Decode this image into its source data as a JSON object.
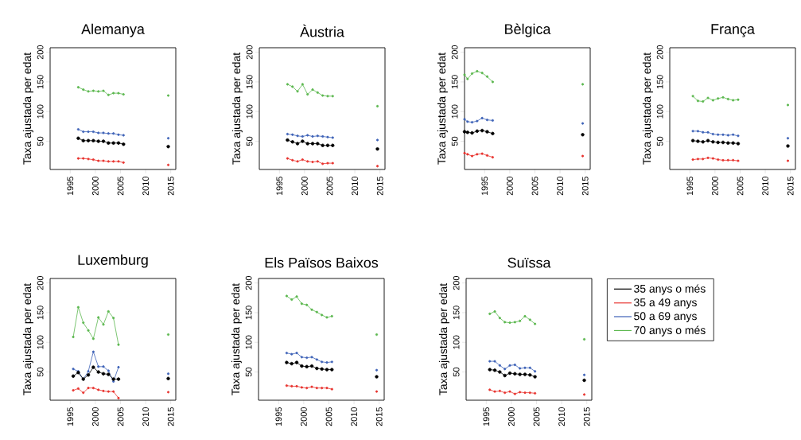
{
  "chart_data": [
    {
      "type": "line",
      "title": "Alemanya",
      "ylabel": "Taxa ajustada per edat",
      "xlim": [
        1991,
        2016
      ],
      "ylim": [
        2.4,
        207.6
      ],
      "xticks": [
        1995,
        2000,
        2005,
        2010,
        2015
      ],
      "yticks": [
        50,
        100,
        150,
        200
      ],
      "marker": "circle",
      "legend": false,
      "grid": false,
      "x": [
        1996.6,
        1997.6,
        1998.6,
        1999.6,
        2000.6,
        2001.6,
        2002.6,
        2003.6,
        2004.6,
        2005.6,
        2010,
        2014.5
      ],
      "series": [
        {
          "color": "#000000",
          "values": [
            55,
            51,
            51,
            51,
            50,
            50,
            47,
            47,
            47,
            45,
            null,
            41
          ]
        },
        {
          "color": "#e8332e",
          "values": [
            21,
            21,
            20,
            19,
            17,
            17,
            16,
            16,
            16,
            14,
            null,
            10
          ]
        },
        {
          "color": "#3f63b8",
          "values": [
            70,
            66,
            66,
            66,
            64,
            64,
            63,
            63,
            61,
            60,
            null,
            55
          ]
        },
        {
          "color": "#5cb84f",
          "values": [
            141,
            137,
            134,
            135,
            134,
            135,
            128,
            131,
            131,
            129,
            null,
            127
          ]
        }
      ]
    },
    {
      "type": "line",
      "title": "Àustria",
      "ylabel": "Taxa ajustada per edat",
      "xlim": [
        1991,
        2016
      ],
      "ylim": [
        2.4,
        207.6
      ],
      "xticks": [
        1995,
        2000,
        2005,
        2010,
        2015
      ],
      "yticks": [
        50,
        100,
        150,
        200
      ],
      "marker": "circle",
      "legend": false,
      "grid": false,
      "x": [
        1996.6,
        1997.6,
        1998.6,
        1999.6,
        2000.6,
        2001.6,
        2002.6,
        2003.6,
        2004.6,
        2005.6,
        2010,
        2014.5
      ],
      "series": [
        {
          "color": "#000000",
          "values": [
            52,
            49,
            46,
            50,
            46,
            46,
            46,
            43,
            43,
            43,
            null,
            37
          ]
        },
        {
          "color": "#e8332e",
          "values": [
            21,
            18,
            16,
            19,
            16,
            15,
            16,
            12,
            13,
            13,
            null,
            8
          ]
        },
        {
          "color": "#3f63b8",
          "values": [
            62,
            61,
            59,
            58,
            60,
            58,
            59,
            58,
            57,
            56,
            null,
            52
          ]
        },
        {
          "color": "#5cb84f",
          "values": [
            146,
            142,
            134,
            146,
            129,
            137,
            132,
            127,
            126,
            126,
            null,
            109
          ]
        }
      ]
    },
    {
      "type": "line",
      "title": "Bèlgica",
      "ylabel": "Taxa ajustada per edat",
      "xlim": [
        1991,
        2016
      ],
      "ylim": [
        2.4,
        207.6
      ],
      "xticks": [
        1995,
        2000,
        2005,
        2010,
        2015
      ],
      "yticks": [
        50,
        100,
        150,
        200
      ],
      "marker": "circle",
      "legend": false,
      "grid": false,
      "x": [
        1991,
        1991.6,
        1992.5,
        1993.5,
        1994.5,
        1995.5,
        1996.6,
        2005,
        2014.5
      ],
      "series": [
        {
          "color": "#000000",
          "values": [
            66,
            65,
            64,
            67,
            68,
            66,
            63,
            null,
            61
          ]
        },
        {
          "color": "#e8332e",
          "values": [
            30,
            28,
            25,
            28,
            29,
            26,
            23,
            null,
            25
          ]
        },
        {
          "color": "#3f63b8",
          "values": [
            87,
            83,
            82,
            84,
            89,
            86,
            85,
            null,
            80
          ]
        },
        {
          "color": "#5cb84f",
          "values": [
            162,
            155,
            164,
            168,
            165,
            159,
            150,
            null,
            146
          ]
        }
      ]
    },
    {
      "type": "line",
      "title": "França",
      "ylabel": "Taxa ajustada per edat",
      "xlim": [
        1991,
        2016
      ],
      "ylim": [
        2.4,
        207.6
      ],
      "xticks": [
        1995,
        2000,
        2005,
        2010,
        2015
      ],
      "yticks": [
        50,
        100,
        150,
        200
      ],
      "marker": "circle",
      "legend": false,
      "grid": false,
      "x": [
        1995.6,
        1996.6,
        1997.6,
        1998.6,
        1999.6,
        2000.6,
        2001.6,
        2002.6,
        2003.6,
        2004.6,
        2010,
        2014.5
      ],
      "series": [
        {
          "color": "#000000",
          "values": [
            51,
            50,
            49,
            51,
            49,
            48,
            48,
            47,
            47,
            46,
            null,
            42
          ]
        },
        {
          "color": "#e8332e",
          "values": [
            19,
            20,
            20,
            22,
            21,
            19,
            18,
            18,
            18,
            17,
            null,
            17
          ]
        },
        {
          "color": "#3f63b8",
          "values": [
            67,
            67,
            65,
            65,
            62,
            61,
            61,
            60,
            61,
            59,
            null,
            55
          ]
        },
        {
          "color": "#5cb84f",
          "values": [
            126,
            118,
            117,
            123,
            119,
            122,
            124,
            121,
            119,
            120,
            null,
            111
          ]
        }
      ]
    },
    {
      "type": "line",
      "title": "Luxemburg",
      "ylabel": "Taxa ajustada per edat",
      "xlim": [
        1991,
        2016
      ],
      "ylim": [
        2.4,
        207.6
      ],
      "xticks": [
        1995,
        2000,
        2005,
        2010,
        2015
      ],
      "yticks": [
        50,
        100,
        150,
        200
      ],
      "marker": "circle",
      "legend": false,
      "grid": false,
      "x": [
        1995.6,
        1996.6,
        1997.6,
        1998.6,
        1999.6,
        2000.6,
        2001.6,
        2002.6,
        2003.6,
        2004.6,
        2010,
        2014.5
      ],
      "series": [
        {
          "color": "#000000",
          "values": [
            43,
            49,
            38,
            45,
            58,
            50,
            47,
            46,
            38,
            38,
            null,
            39
          ]
        },
        {
          "color": "#e8332e",
          "values": [
            19,
            22,
            15,
            23,
            23,
            20,
            18,
            17,
            17,
            6,
            null,
            16
          ]
        },
        {
          "color": "#3f63b8",
          "values": [
            55,
            51,
            38,
            51,
            84,
            59,
            59,
            52,
            34,
            58,
            null,
            47
          ]
        },
        {
          "color": "#5cb84f",
          "values": [
            109,
            159,
            133,
            120,
            106,
            142,
            130,
            152,
            141,
            96,
            null,
            113
          ]
        }
      ]
    },
    {
      "type": "line",
      "title": "Els Països Baixos",
      "ylabel": "Taxa ajustada per edat",
      "xlim": [
        1991,
        2016
      ],
      "ylim": [
        2.4,
        207.6
      ],
      "xticks": [
        1995,
        2000,
        2005,
        2010,
        2015
      ],
      "yticks": [
        50,
        100,
        150,
        200
      ],
      "marker": "circle",
      "legend": false,
      "grid": false,
      "x": [
        1996.6,
        1997.6,
        1998.6,
        1999.6,
        2000.6,
        2001.6,
        2002.6,
        2003.6,
        2004.6,
        2005.6,
        2010,
        2014.5
      ],
      "series": [
        {
          "color": "#000000",
          "values": [
            66,
            64,
            66,
            60,
            59,
            60,
            56,
            55,
            54,
            54,
            null,
            42
          ]
        },
        {
          "color": "#e8332e",
          "values": [
            27,
            26,
            26,
            24,
            23,
            25,
            23,
            23,
            23,
            21,
            null,
            17
          ]
        },
        {
          "color": "#3f63b8",
          "values": [
            82,
            80,
            82,
            75,
            74,
            75,
            71,
            67,
            66,
            67,
            null,
            53
          ]
        },
        {
          "color": "#5cb84f",
          "values": [
            178,
            172,
            177,
            165,
            163,
            155,
            151,
            146,
            142,
            144,
            null,
            113
          ]
        }
      ]
    },
    {
      "type": "line",
      "title": "Suïssa",
      "ylabel": "Taxa ajustada per edat",
      "xlim": [
        1991,
        2016
      ],
      "ylim": [
        2.4,
        207.6
      ],
      "xticks": [
        1995,
        2000,
        2005,
        2010,
        2015
      ],
      "yticks": [
        50,
        100,
        150,
        200
      ],
      "marker": "circle",
      "legend": "right",
      "grid": false,
      "x": [
        1995.7,
        1996.7,
        1997.7,
        1998.7,
        1999.7,
        2000.7,
        2001.7,
        2002.7,
        2003.7,
        2004.7,
        2010,
        2014.5
      ],
      "series": [
        {
          "name": "35 anys o més",
          "color": "#000000",
          "values": [
            54,
            53,
            50,
            44,
            48,
            47,
            46,
            46,
            45,
            42,
            null,
            36
          ]
        },
        {
          "name": "35 a 49 anys",
          "color": "#e8332e",
          "values": [
            20,
            17,
            18,
            15,
            17,
            13,
            16,
            15,
            15,
            14,
            null,
            12
          ]
        },
        {
          "name": "50 a 69 anys",
          "color": "#3f63b8",
          "values": [
            68,
            68,
            61,
            55,
            61,
            62,
            56,
            57,
            57,
            51,
            null,
            45
          ]
        },
        {
          "name": "70 anys o més",
          "color": "#5cb84f",
          "values": [
            148,
            152,
            141,
            134,
            133,
            134,
            136,
            144,
            138,
            131,
            null,
            105
          ]
        }
      ]
    }
  ]
}
